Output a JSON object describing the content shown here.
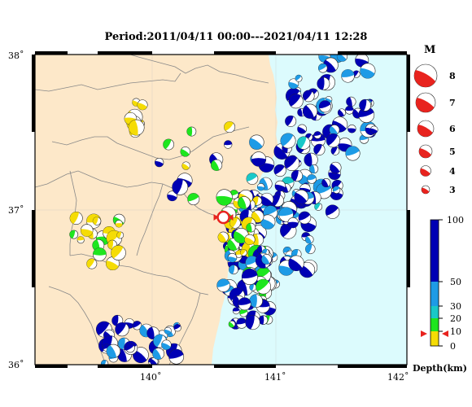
{
  "title": "Period:2011/04/11 00:00---2021/04/11 12:28",
  "map": {
    "lat_labels": [
      "38˚",
      "37˚",
      "36˚"
    ],
    "lon_labels": [
      "140˚",
      "141˚",
      "142˚"
    ],
    "lat_range": [
      36,
      38
    ],
    "lon_range": [
      139.1,
      142.1
    ],
    "land_color": "#fde8c9",
    "sea_color": "#dcfbfd"
  },
  "legend": {
    "magnitude_title": "M",
    "magnitudes": [
      "8",
      "7",
      "6",
      "5",
      "4",
      "3"
    ],
    "magnitude_color": "#e8231e",
    "depth_label": "Depth(km)",
    "depth_ticks": [
      "100",
      "50",
      "30",
      "20",
      "10",
      "0"
    ],
    "depth_colors": {
      "deep": "#0000b4",
      "mid": "#1e9be6",
      "shallow30": "#19c8c8",
      "shallow20": "#1ee61e",
      "surface": "#f5dc05"
    }
  },
  "focus_marker": {
    "lat": 36.95,
    "lon": 140.62,
    "color": "#e8231e"
  }
}
